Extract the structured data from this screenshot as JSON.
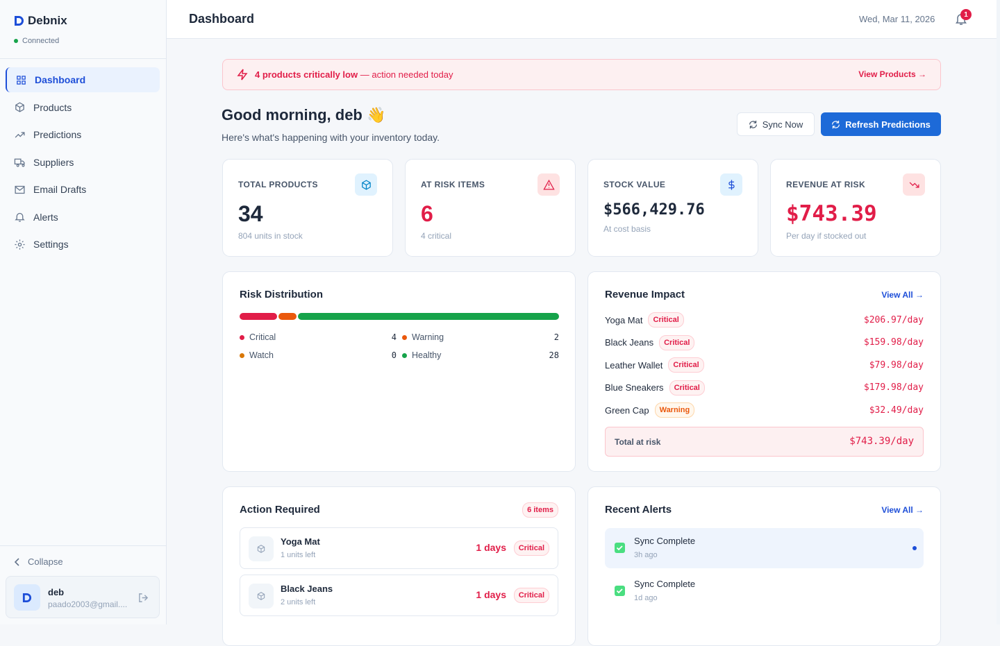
{
  "sidebar": {
    "brand": "Debnix",
    "status": "Connected",
    "nav": [
      "Dashboard",
      "Products",
      "Predictions",
      "Suppliers",
      "Email Drafts",
      "Alerts",
      "Settings"
    ],
    "collapse": "Collapse",
    "user": {
      "name": "deb",
      "email": "paado2003@gmail...."
    }
  },
  "header": {
    "title": "Dashboard",
    "date": "Wed, Mar 11, 2026",
    "notifications": 1
  },
  "banner": {
    "strong": "4 products critically low",
    "text": "— action needed today",
    "link": "View Products →"
  },
  "greeting": {
    "title": "Good morning, deb 👋",
    "subtitle": "Here's what's happening with your inventory today."
  },
  "buttons": {
    "sync": "Sync Now",
    "refresh": "Refresh Predictions"
  },
  "stats": [
    {
      "label": "TOTAL PRODUCTS",
      "value": "34",
      "note": "804 units in stock",
      "color": "#1e293b"
    },
    {
      "label": "AT RISK ITEMS",
      "value": "6",
      "note": "4 critical",
      "color": "#e11d48"
    },
    {
      "label": "STOCK VALUE",
      "value": "$566,429.76",
      "note": "At cost basis",
      "color": "#1e293b"
    },
    {
      "label": "REVENUE AT RISK",
      "value": "$743.39",
      "note": "Per day if stocked out",
      "color": "#e11d48"
    }
  ],
  "risk": {
    "title": "Risk Distribution",
    "series": [
      {
        "name": "Critical",
        "value": 4,
        "color": "#e11d48"
      },
      {
        "name": "Warning",
        "value": 2,
        "color": "#ea580c"
      },
      {
        "name": "Watch",
        "value": 0,
        "color": "#d97706"
      },
      {
        "name": "Healthy",
        "value": 28,
        "color": "#16a34a"
      }
    ]
  },
  "revenue": {
    "title": "Revenue Impact",
    "link": "View All →",
    "items": [
      {
        "name": "Yoga Mat",
        "status": "Critical",
        "amount": "$206.97/day"
      },
      {
        "name": "Black Jeans",
        "status": "Critical",
        "amount": "$159.98/day"
      },
      {
        "name": "Leather Wallet",
        "status": "Critical",
        "amount": "$79.98/day"
      },
      {
        "name": "Blue Sneakers",
        "status": "Critical",
        "amount": "$179.98/day"
      },
      {
        "name": "Green Cap",
        "status": "Warning",
        "amount": "$32.49/day"
      }
    ],
    "total_label": "Total at risk",
    "total": "$743.39/day"
  },
  "actions": {
    "title": "Action Required",
    "badge": "6 items",
    "items": [
      {
        "name": "Yoga Mat",
        "note": "1 units left",
        "days": "1 days",
        "status": "Critical"
      },
      {
        "name": "Black Jeans",
        "note": "2 units left",
        "days": "1 days",
        "status": "Critical"
      }
    ]
  },
  "alerts": {
    "title": "Recent Alerts",
    "link": "View All →",
    "items": [
      {
        "title": "Sync Complete",
        "time": "3h ago"
      },
      {
        "title": "Sync Complete",
        "time": "1d ago"
      }
    ]
  }
}
